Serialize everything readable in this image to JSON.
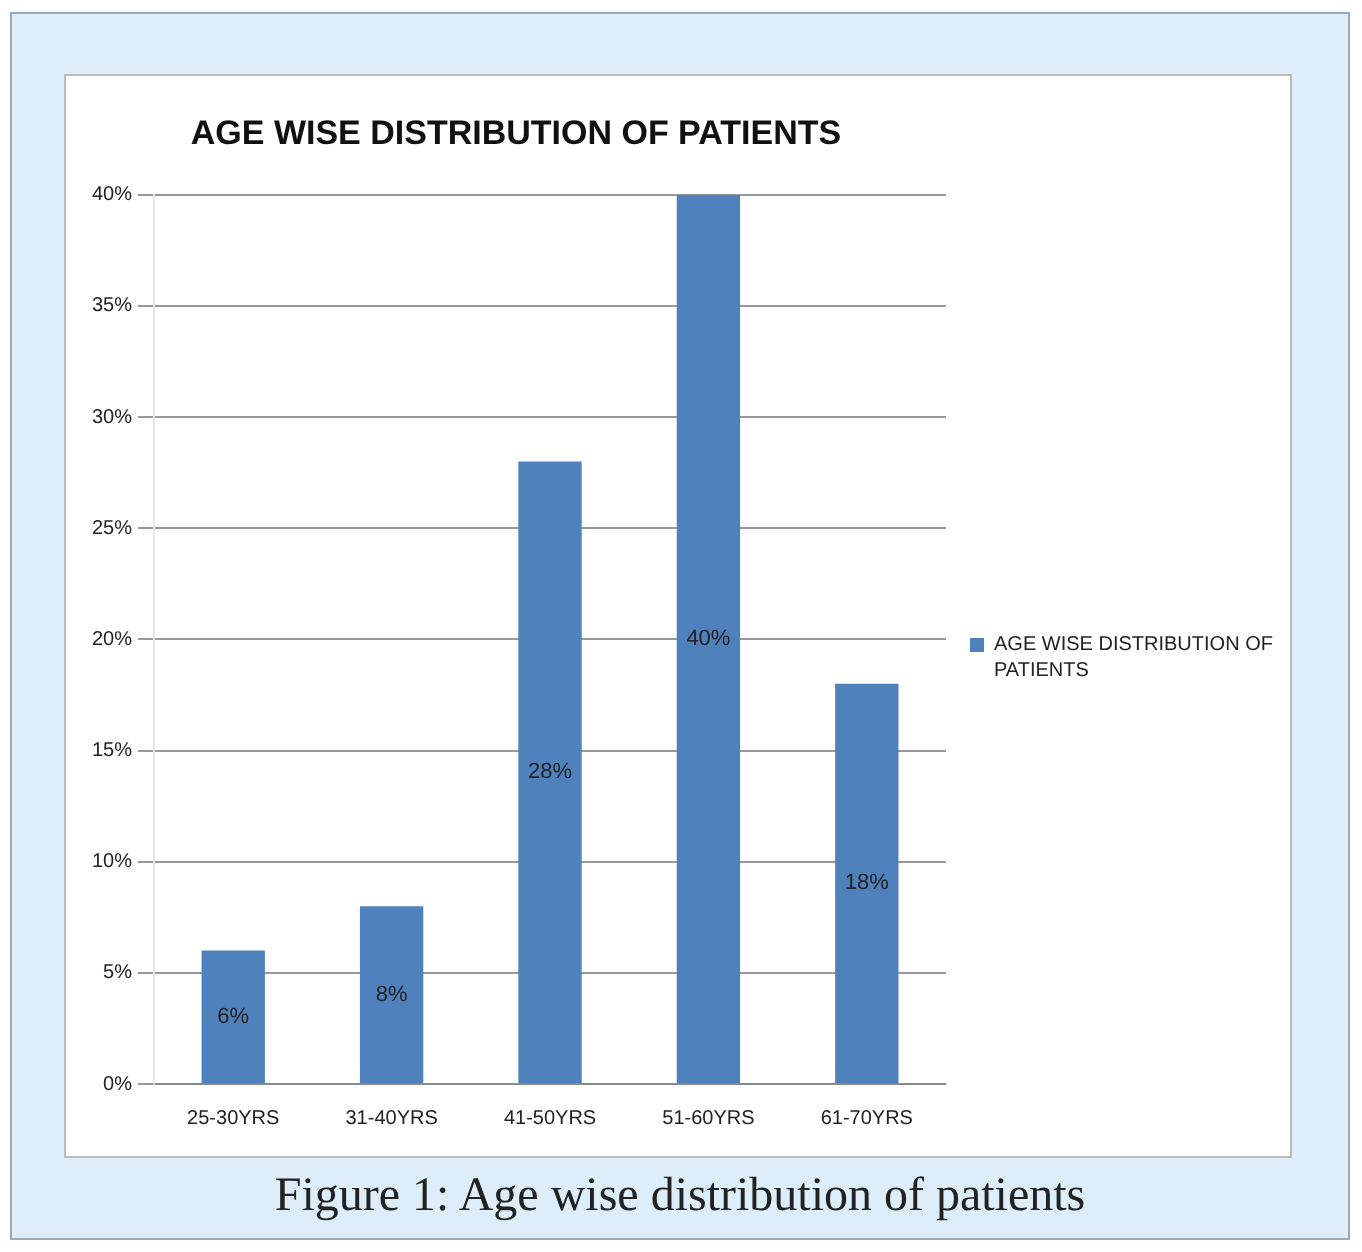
{
  "chart_data": {
    "type": "bar",
    "title": "AGE WISE DISTRIBUTION OF PATIENTS",
    "categories": [
      "25-30YRS",
      "31-40YRS",
      "41-50YRS",
      "51-60YRS",
      "61-70YRS"
    ],
    "series": [
      {
        "name": "AGE WISE DISTRIBUTION OF PATIENTS",
        "color": "#4f81bd",
        "values": [
          6,
          8,
          28,
          40,
          18
        ],
        "value_labels": [
          "6%",
          "8%",
          "28%",
          "40%",
          "18%"
        ]
      }
    ],
    "ylim": [
      0,
      40
    ],
    "yticks": [
      {
        "value": 0,
        "label": "0%"
      },
      {
        "value": 5,
        "label": "5%"
      },
      {
        "value": 10,
        "label": "10%"
      },
      {
        "value": 15,
        "label": "15%"
      },
      {
        "value": 20,
        "label": "20%"
      },
      {
        "value": 25,
        "label": "25%"
      },
      {
        "value": 30,
        "label": "30%"
      },
      {
        "value": 35,
        "label": "35%"
      },
      {
        "value": 40,
        "label": "40%"
      }
    ],
    "grid": "y",
    "legend": "right",
    "annotations": [
      "Figure 1: Age wise distribution of patients"
    ]
  }
}
